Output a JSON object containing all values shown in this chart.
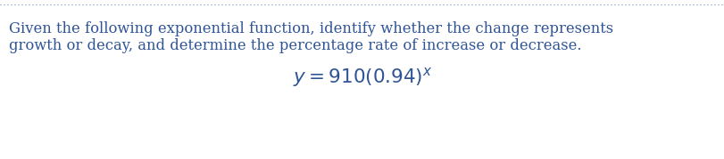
{
  "background_color": "#ffffff",
  "border_color": "#5a7ab5",
  "text_color": "#2e5496",
  "paragraph_line1": "Given the following exponential function, identify whether the change represents",
  "paragraph_line2": "growth or decay, and determine the percentage rate of increase or decrease.",
  "formula": "$y = 910(0.94)^{x}$",
  "text_fontsize": 11.8,
  "formula_fontsize": 15.5,
  "fig_width": 8.12,
  "fig_height": 1.79,
  "dpi": 100
}
